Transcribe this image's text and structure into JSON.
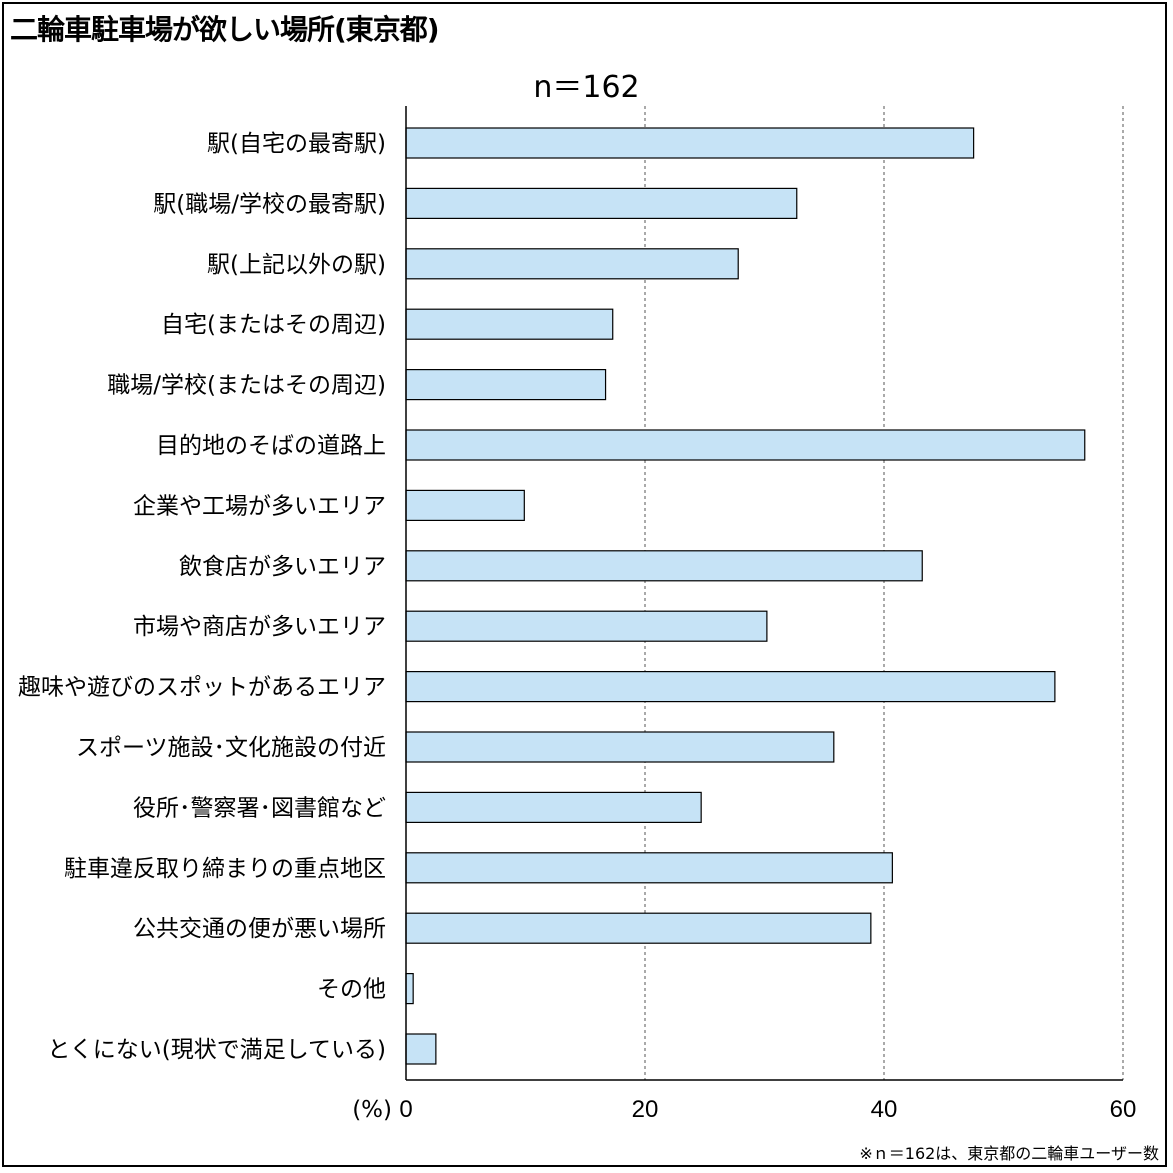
{
  "title": "二輪車駐車場が欲しい場所(東京都)",
  "subtitle": "n＝162",
  "footnote": "※ｎ＝162は、東京都の二輪車ユーザー数",
  "colors": {
    "bar_fill": "#c6e3f6",
    "bar_stroke": "#000000",
    "grid": "#555555"
  },
  "chart_data": {
    "type": "bar",
    "orientation": "horizontal",
    "categories": [
      "駅(自宅の最寄駅)",
      "駅(職場/学校の最寄駅)",
      "駅(上記以外の駅)",
      "自宅(またはその周辺)",
      "職場/学校(またはその周辺)",
      "目的地のそばの道路上",
      "企業や工場が多いエリア",
      "飲食店が多いエリア",
      "市場や商店が多いエリア",
      "趣味や遊びのスポットがあるエリア",
      "スポーツ施設･文化施設の付近",
      "役所･警察署･図書館など",
      "駐車違反取り締まりの重点地区",
      "公共交通の便が悪い場所",
      "その他",
      "とくにない(現状で満足している)"
    ],
    "values": [
      47.5,
      32.7,
      27.8,
      17.3,
      16.7,
      56.8,
      9.9,
      43.2,
      30.2,
      54.3,
      35.8,
      24.7,
      40.7,
      38.9,
      0.6,
      2.5
    ],
    "xlim": [
      0,
      60
    ],
    "xticks": [
      0,
      20,
      40,
      60
    ],
    "xtick_labels": [
      "0",
      "20",
      "40",
      "60"
    ],
    "xlabel": "(%)",
    "grid": "vertical dashed",
    "legend": "none"
  }
}
